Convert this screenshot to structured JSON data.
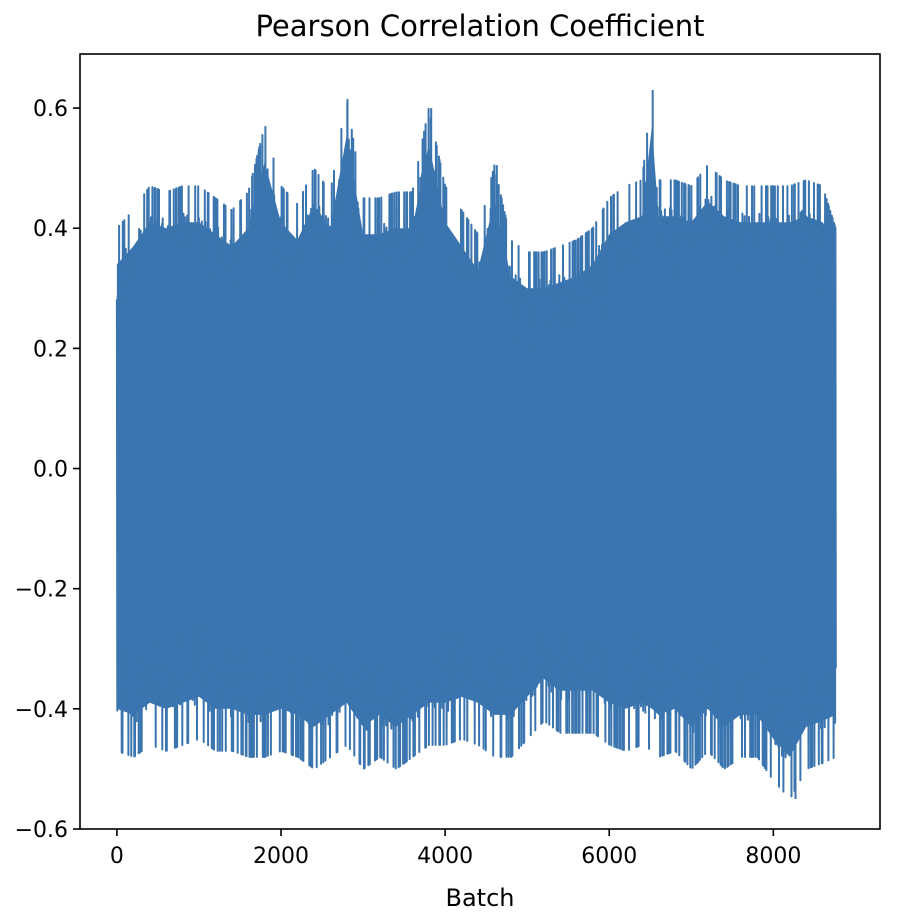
{
  "chart_data": {
    "type": "line",
    "title": "Pearson Correlation Coefficient",
    "xlabel": "Batch",
    "ylabel": "",
    "xlim": [
      -450,
      9300
    ],
    "ylim": [
      -0.6,
      0.69
    ],
    "xticks": [
      0,
      2000,
      4000,
      6000,
      8000
    ],
    "xtick_labels": [
      "0",
      "2000",
      "4000",
      "6000",
      "8000"
    ],
    "yticks": [
      -0.6,
      -0.4,
      -0.2,
      0.0,
      0.2,
      0.4,
      0.6
    ],
    "ytick_labels": [
      "−0.6",
      "−0.4",
      "−0.2",
      "0.0",
      "0.2",
      "0.4",
      "0.6"
    ],
    "grid": false,
    "legend": "none",
    "series": [
      {
        "color": "#3b75af",
        "description_of_data": "Dense oscillating series over ~8760 batches; per-segment approximate upper and lower envelopes",
        "x": [
          0,
          200,
          400,
          600,
          800,
          1000,
          1200,
          1400,
          1600,
          1800,
          2000,
          2200,
          2400,
          2600,
          2800,
          3000,
          3200,
          3400,
          3600,
          3800,
          4000,
          4200,
          4400,
          4600,
          4800,
          5000,
          5200,
          5400,
          5600,
          5800,
          6000,
          6200,
          6400,
          6520,
          6600,
          6800,
          7000,
          7200,
          7400,
          7600,
          7800,
          8000,
          8200,
          8400,
          8600,
          8760
        ],
        "upper": [
          0.4,
          0.43,
          0.47,
          0.46,
          0.47,
          0.47,
          0.45,
          0.43,
          0.46,
          0.57,
          0.47,
          0.44,
          0.5,
          0.46,
          0.615,
          0.45,
          0.45,
          0.46,
          0.46,
          0.6,
          0.47,
          0.43,
          0.39,
          0.505,
          0.38,
          0.36,
          0.36,
          0.37,
          0.38,
          0.4,
          0.45,
          0.47,
          0.48,
          0.63,
          0.48,
          0.48,
          0.47,
          0.505,
          0.48,
          0.47,
          0.47,
          0.47,
          0.47,
          0.48,
          0.47,
          0.4
        ],
        "lower": [
          -0.47,
          -0.48,
          -0.46,
          -0.47,
          -0.46,
          -0.45,
          -0.47,
          -0.47,
          -0.48,
          -0.48,
          -0.47,
          -0.48,
          -0.5,
          -0.48,
          -0.46,
          -0.5,
          -0.48,
          -0.5,
          -0.48,
          -0.46,
          -0.46,
          -0.45,
          -0.46,
          -0.48,
          -0.48,
          -0.45,
          -0.42,
          -0.44,
          -0.44,
          -0.44,
          -0.46,
          -0.47,
          -0.46,
          -0.47,
          -0.48,
          -0.47,
          -0.5,
          -0.47,
          -0.5,
          -0.48,
          -0.48,
          -0.52,
          -0.55,
          -0.5,
          -0.49,
          -0.48
        ],
        "typical_band": [
          0.3,
          -0.4
        ],
        "spikes": [
          {
            "x": 1810,
            "y": 0.57
          },
          {
            "x": 2810,
            "y": 0.615
          },
          {
            "x": 3830,
            "y": 0.6
          },
          {
            "x": 4630,
            "y": 0.505
          },
          {
            "x": 6530,
            "y": 0.63
          },
          {
            "x": 8270,
            "y": -0.55
          }
        ]
      }
    ]
  }
}
